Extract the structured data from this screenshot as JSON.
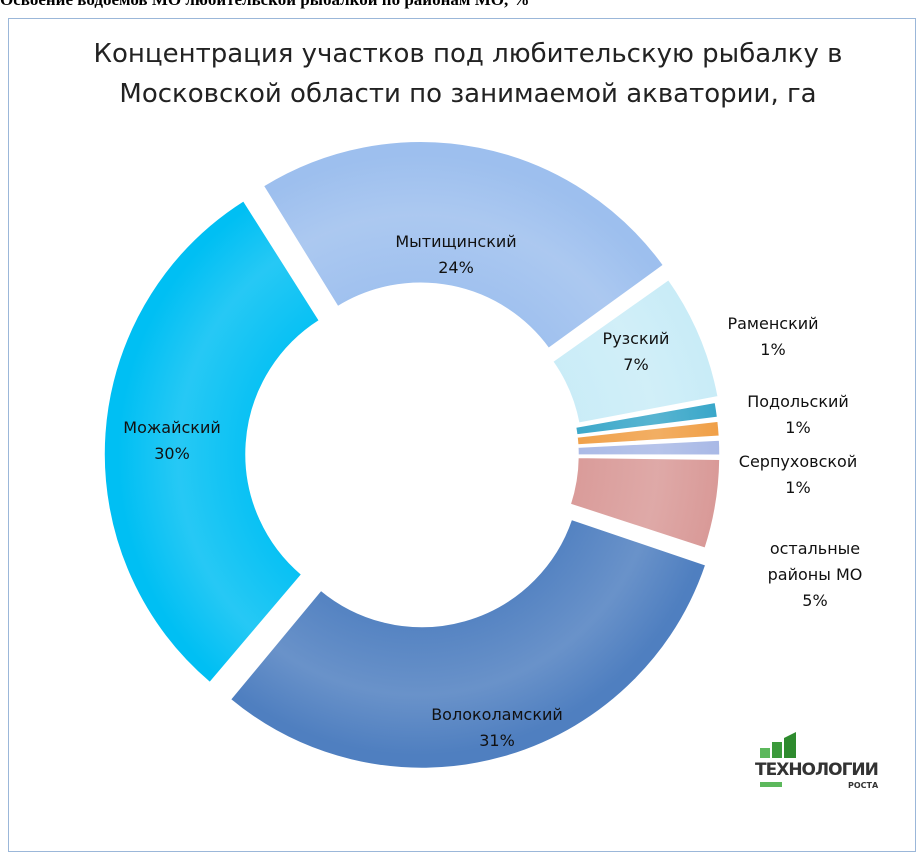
{
  "caption": "Освоение водоемов МО любительской рыбалкой по районам МО, %",
  "logo": {
    "line1": "ТЕХНОЛОГИИ",
    "line2": "РОСТА"
  },
  "chart_data": {
    "type": "donut",
    "title": "Концентрация участков под любительскую рыбалку в Московской области по занимаемой акватории, га",
    "categories": [
      "Мытищинский",
      "Рузский",
      "Раменский",
      "Подольский",
      "Серпуховской",
      "остальные районы МО",
      "Волоколамский",
      "Можайский"
    ],
    "values": [
      24,
      7,
      1,
      1,
      1,
      5,
      31,
      30
    ],
    "value_labels": [
      "24%",
      "7%",
      "1%",
      "1%",
      "1%",
      "5%",
      "31%",
      "30%"
    ],
    "colors": [
      "#9dbfee",
      "#c9ecf7",
      "#3aa7c9",
      "#f0a048",
      "#a9b9e6",
      "#d99a98",
      "#4f7fc0",
      "#00bff3"
    ]
  }
}
